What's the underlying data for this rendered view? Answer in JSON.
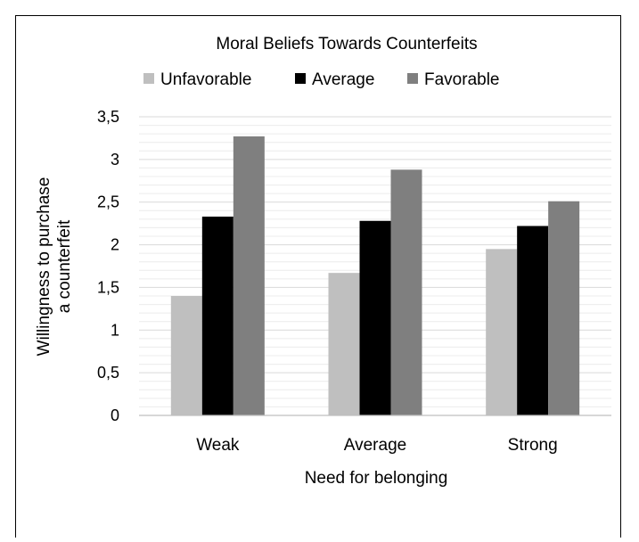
{
  "chart_data": {
    "type": "bar",
    "categories": [
      "Weak",
      "Average",
      "Strong"
    ],
    "series": [
      {
        "name": "Unfavorable",
        "values": [
          1.4,
          1.67,
          1.95
        ],
        "color": "#bfbfbf"
      },
      {
        "name": "Average",
        "values": [
          2.33,
          2.28,
          2.22
        ],
        "color": "#000000"
      },
      {
        "name": "Favorable",
        "values": [
          3.27,
          2.88,
          2.51
        ],
        "color": "#7f7f7f"
      }
    ],
    "legend_title": "Moral Beliefs Towards Counterfeits",
    "legend_position": "top",
    "xlabel": "Need for belonging",
    "ylabel": [
      "Willingness to purchase",
      "a counterfeit"
    ],
    "ylim": [
      0,
      3.5
    ],
    "yticks": [
      "0",
      "0,5",
      "1",
      "1,5",
      "2",
      "2,5",
      "3",
      "3,5"
    ],
    "grid": true
  }
}
